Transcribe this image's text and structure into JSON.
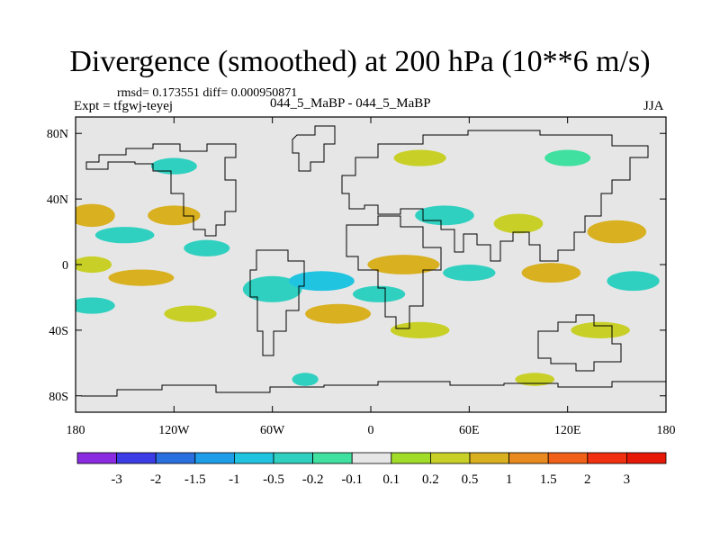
{
  "chart_data": {
    "type": "heatmap",
    "title": "Divergence (smoothed) at 200 hPa (10**6 m/s)",
    "stats_line": "rmsd= 0.173551 diff= 0.000950871",
    "expt_label": "Expt = tfgwj-teyej",
    "case_label": "044_5_MaBP - 044_5_MaBP",
    "season": "JJA",
    "x_range": [
      -180,
      180
    ],
    "y_range": [
      -90,
      90
    ],
    "x_ticks": [
      {
        "value": -180,
        "label": "180"
      },
      {
        "value": -120,
        "label": "120W"
      },
      {
        "value": -60,
        "label": "60W"
      },
      {
        "value": 0,
        "label": "0"
      },
      {
        "value": 60,
        "label": "60E"
      },
      {
        "value": 120,
        "label": "120E"
      },
      {
        "value": 180,
        "label": "180"
      }
    ],
    "y_ticks": [
      {
        "value": 80,
        "label": "80N"
      },
      {
        "value": 40,
        "label": "40N"
      },
      {
        "value": 0,
        "label": "0"
      },
      {
        "value": -40,
        "label": "40S"
      },
      {
        "value": -80,
        "label": "80S"
      }
    ],
    "colorbar": {
      "levels": [
        "-3",
        "-2",
        "-1.5",
        "-1",
        "-0.5",
        "-0.2",
        "-0.1",
        "0.1",
        "0.2",
        "0.5",
        "1",
        "1.5",
        "2",
        "3"
      ],
      "colors": [
        "#8a2be2",
        "#3c3ce6",
        "#2a6fe0",
        "#1e9ee8",
        "#20c4e0",
        "#30d0c0",
        "#40e0a0",
        "#e6e6e6",
        "#a0dc28",
        "#c8d028",
        "#d8b020",
        "#e88a20",
        "#f06018",
        "#f03010",
        "#e81808"
      ]
    },
    "regions": [
      {
        "lon": -170,
        "lat": 30,
        "rlon": 14,
        "rlat": 7,
        "value": 0.7
      },
      {
        "lon": -150,
        "lat": 18,
        "rlon": 18,
        "rlat": 5,
        "value": -0.4
      },
      {
        "lon": -170,
        "lat": 0,
        "rlon": 12,
        "rlat": 5,
        "value": 0.3
      },
      {
        "lon": -140,
        "lat": -8,
        "rlon": 20,
        "rlat": 5,
        "value": 0.6
      },
      {
        "lon": -170,
        "lat": -25,
        "rlon": 14,
        "rlat": 5,
        "value": -0.3
      },
      {
        "lon": -120,
        "lat": 30,
        "rlon": 16,
        "rlat": 6,
        "value": 0.5
      },
      {
        "lon": -100,
        "lat": 10,
        "rlon": 14,
        "rlat": 5,
        "value": -0.3
      },
      {
        "lon": -110,
        "lat": -30,
        "rlon": 16,
        "rlat": 5,
        "value": 0.4
      },
      {
        "lon": -60,
        "lat": -15,
        "rlon": 18,
        "rlat": 8,
        "value": -0.4
      },
      {
        "lon": -30,
        "lat": -10,
        "rlon": 20,
        "rlat": 6,
        "value": -0.6
      },
      {
        "lon": -20,
        "lat": -30,
        "rlon": 20,
        "rlat": 6,
        "value": 0.5
      },
      {
        "lon": 20,
        "lat": 0,
        "rlon": 22,
        "rlat": 6,
        "value": 0.8
      },
      {
        "lon": 5,
        "lat": -18,
        "rlon": 16,
        "rlat": 5,
        "value": -0.4
      },
      {
        "lon": 30,
        "lat": -40,
        "rlon": 18,
        "rlat": 5,
        "value": 0.3
      },
      {
        "lon": 45,
        "lat": 30,
        "rlon": 18,
        "rlat": 6,
        "value": -0.3
      },
      {
        "lon": 60,
        "lat": -5,
        "rlon": 16,
        "rlat": 5,
        "value": -0.4
      },
      {
        "lon": 90,
        "lat": 25,
        "rlon": 15,
        "rlat": 6,
        "value": 0.4
      },
      {
        "lon": 110,
        "lat": -5,
        "rlon": 18,
        "rlat": 6,
        "value": 0.5
      },
      {
        "lon": 150,
        "lat": 20,
        "rlon": 18,
        "rlat": 7,
        "value": 0.6
      },
      {
        "lon": 160,
        "lat": -10,
        "rlon": 16,
        "rlat": 6,
        "value": -0.4
      },
      {
        "lon": 140,
        "lat": -40,
        "rlon": 18,
        "rlat": 5,
        "value": 0.3
      },
      {
        "lon": -40,
        "lat": -70,
        "rlon": 8,
        "rlat": 4,
        "value": -0.5
      },
      {
        "lon": 100,
        "lat": -70,
        "rlon": 12,
        "rlat": 4,
        "value": 0.3
      },
      {
        "lon": -120,
        "lat": 60,
        "rlon": 14,
        "rlat": 5,
        "value": -0.3
      },
      {
        "lon": 30,
        "lat": 65,
        "rlon": 16,
        "rlat": 5,
        "value": 0.3
      },
      {
        "lon": 120,
        "lat": 65,
        "rlon": 14,
        "rlat": 5,
        "value": -0.2
      }
    ]
  }
}
